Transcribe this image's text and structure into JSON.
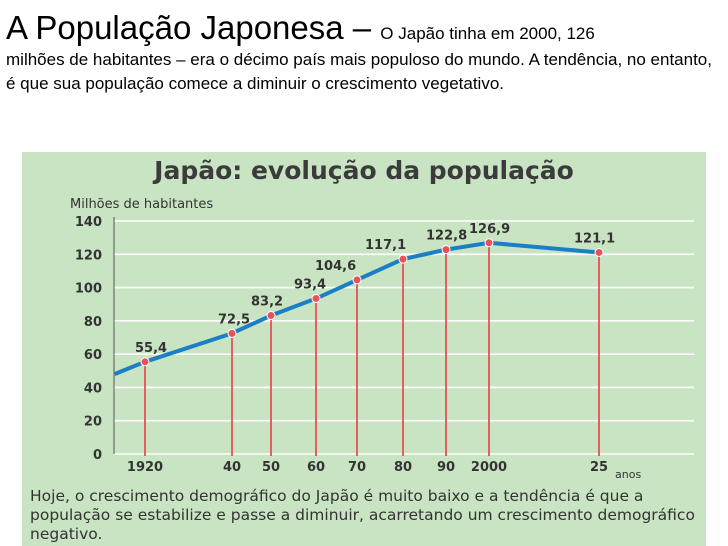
{
  "intro": {
    "title": "A População Japonesa – ",
    "lead": "O Japão tinha em 2000, 126",
    "body": "milhões de habitantes – era o décimo país mais populoso do mundo. A tendência, no entanto, é que sua população comece a diminuir o crescimento vegetativo."
  },
  "panel": {
    "title": "Japão: evolução da população",
    "caption": "Hoje, o crescimento demográfico do Japão é muito baixo e a tendência é que a população se estabilize e passe a diminuir, acarretando um crescimento demográfico negativo."
  },
  "chart_data": {
    "type": "line",
    "title": "Japão: evolução da população",
    "ylabel": "Milhões de habitantes",
    "xlabel": "anos",
    "ylim": [
      0,
      140
    ],
    "yticks": [
      0,
      20,
      40,
      60,
      80,
      100,
      120,
      140
    ],
    "x": [
      1920,
      1940,
      1950,
      1960,
      1970,
      1980,
      1990,
      2000,
      2025
    ],
    "xticklabels": [
      "1920",
      "40",
      "50",
      "60",
      "70",
      "80",
      "90",
      "2000",
      "25"
    ],
    "values": [
      55.4,
      72.5,
      83.2,
      93.4,
      104.6,
      117.1,
      122.8,
      126.9,
      121.1
    ],
    "value_labels": [
      "55,4",
      "72,5",
      "83,2",
      "93,4",
      "104,6",
      "117,1",
      "122,8",
      "126,9",
      "121,1"
    ],
    "line_start": {
      "x": 1913,
      "y": 48
    },
    "colors": {
      "line": "#1a7fc4",
      "drop": "#e8505a",
      "point": "#e8505a",
      "background": "#c9e4c3"
    }
  }
}
